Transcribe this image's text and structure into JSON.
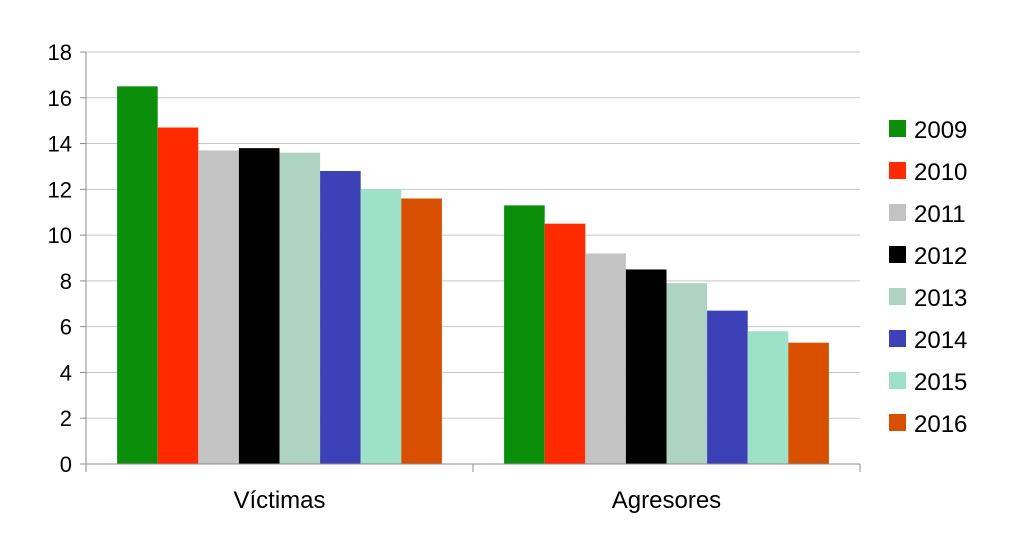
{
  "chart_data": {
    "type": "bar",
    "categories": [
      "Víctimas",
      "Agresores"
    ],
    "series": [
      {
        "name": "2009",
        "color": "#0b8f0b",
        "values": [
          16.5,
          11.3
        ]
      },
      {
        "name": "2010",
        "color": "#ff2a00",
        "values": [
          14.7,
          10.5
        ]
      },
      {
        "name": "2011",
        "color": "#c3c3c3",
        "values": [
          13.7,
          9.2
        ]
      },
      {
        "name": "2012",
        "color": "#000000",
        "values": [
          13.8,
          8.5
        ]
      },
      {
        "name": "2013",
        "color": "#aed3c2",
        "values": [
          13.6,
          7.9
        ]
      },
      {
        "name": "2014",
        "color": "#3c41b7",
        "values": [
          12.8,
          6.7
        ]
      },
      {
        "name": "2015",
        "color": "#9de1c9",
        "values": [
          12.0,
          5.8
        ]
      },
      {
        "name": "2016",
        "color": "#d94f00",
        "values": [
          11.6,
          5.3
        ]
      }
    ],
    "ylim": [
      0,
      18
    ],
    "yticks": [
      "0",
      "2",
      "4",
      "6",
      "8",
      "10",
      "12",
      "14",
      "16",
      "18"
    ],
    "grid": true,
    "legend": "right"
  }
}
